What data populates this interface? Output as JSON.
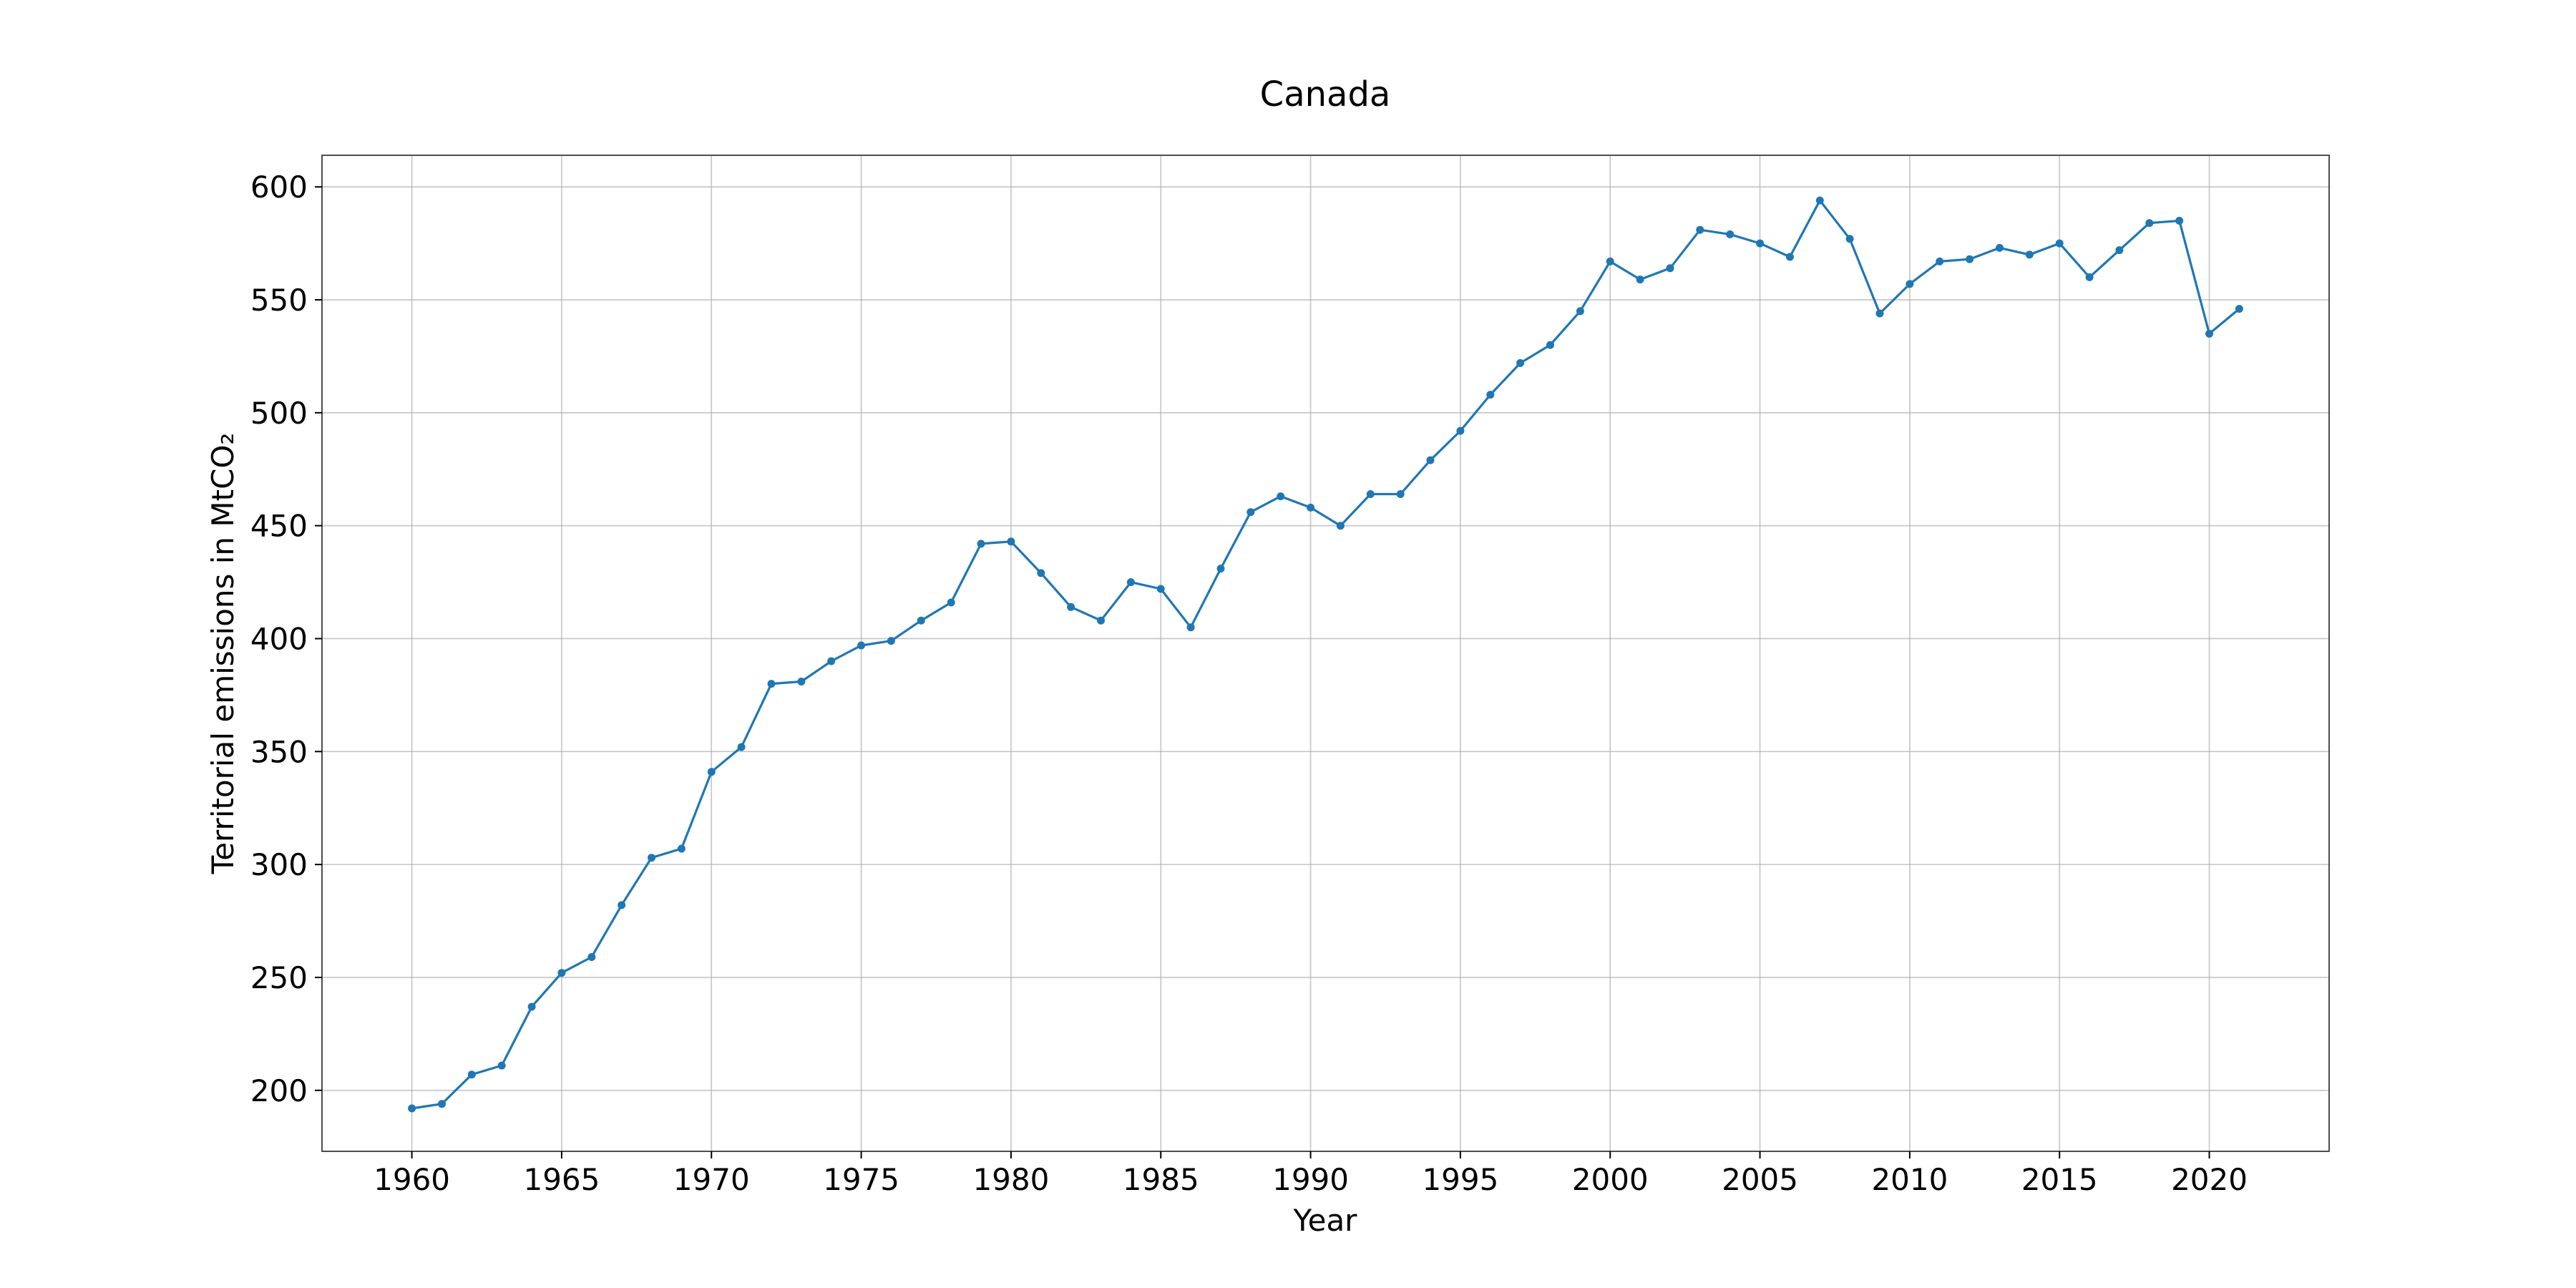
{
  "chart_data": {
    "type": "line",
    "title": "Canada",
    "xlabel": "Year",
    "ylabel": "Territorial emissions in MtCO₂",
    "xlim": [
      1957,
      2024
    ],
    "ylim": [
      173,
      614
    ],
    "grid": true,
    "x_ticks": [
      1960,
      1965,
      1970,
      1975,
      1980,
      1985,
      1990,
      1995,
      2000,
      2005,
      2010,
      2015,
      2020
    ],
    "x_tick_labels": [
      "1960",
      "1965",
      "1970",
      "1975",
      "1980",
      "1985",
      "1990",
      "1995",
      "2000",
      "2005",
      "2010",
      "2015",
      "2020"
    ],
    "y_ticks": [
      200,
      250,
      300,
      350,
      400,
      450,
      500,
      550,
      600
    ],
    "y_tick_labels": [
      "200",
      "250",
      "300",
      "350",
      "400",
      "450",
      "500",
      "550",
      "600"
    ],
    "series": [
      {
        "color": "#1f77b4",
        "marker": "circle",
        "x": [
          1960,
          1961,
          1962,
          1963,
          1964,
          1965,
          1966,
          1967,
          1968,
          1969,
          1970,
          1971,
          1972,
          1973,
          1974,
          1975,
          1976,
          1977,
          1978,
          1979,
          1980,
          1981,
          1982,
          1983,
          1984,
          1985,
          1986,
          1987,
          1988,
          1989,
          1990,
          1991,
          1992,
          1993,
          1994,
          1995,
          1996,
          1997,
          1998,
          1999,
          2000,
          2001,
          2002,
          2003,
          2004,
          2005,
          2006,
          2007,
          2008,
          2009,
          2010,
          2011,
          2012,
          2013,
          2014,
          2015,
          2016,
          2017,
          2018,
          2019,
          2020,
          2021
        ],
        "y": [
          192,
          194,
          207,
          211,
          237,
          252,
          259,
          282,
          303,
          307,
          341,
          352,
          380,
          381,
          390,
          397,
          399,
          408,
          416,
          442,
          443,
          429,
          414,
          408,
          425,
          422,
          405,
          431,
          456,
          463,
          458,
          450,
          464,
          464,
          479,
          492,
          508,
          522,
          530,
          545,
          567,
          559,
          564,
          581,
          579,
          575,
          569,
          594,
          577,
          544,
          557,
          567,
          568,
          573,
          570,
          575,
          560,
          572,
          584,
          585,
          535,
          546
        ]
      }
    ]
  }
}
